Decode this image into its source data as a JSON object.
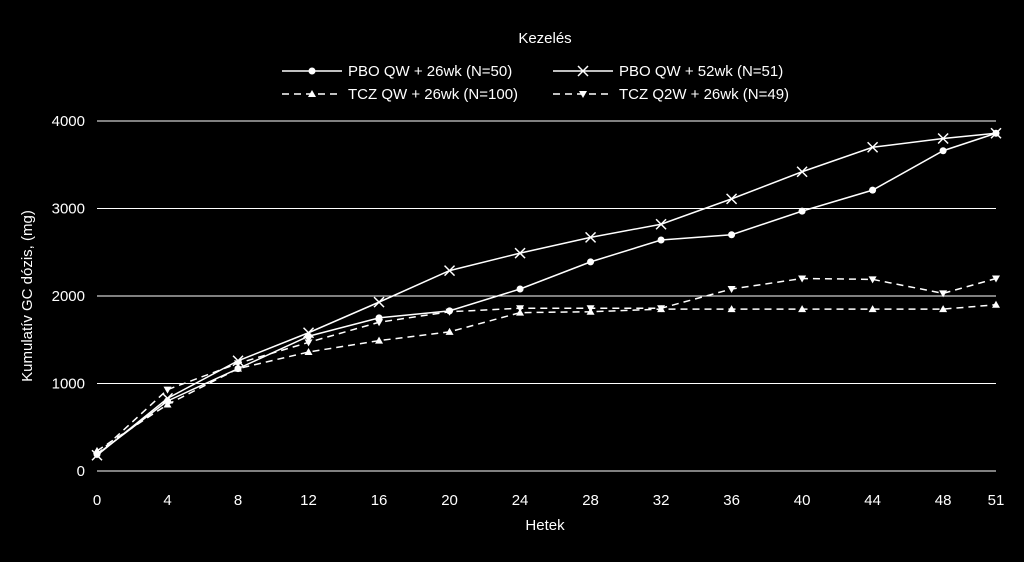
{
  "chart_data": {
    "type": "line",
    "legend_title": "Kezelés",
    "xlabel": "Hetek",
    "ylabel": "Kumulatív GC dózis, (mg)",
    "x": [
      0,
      4,
      8,
      12,
      16,
      20,
      24,
      28,
      32,
      36,
      40,
      44,
      48,
      51
    ],
    "x_ticks": [
      "0",
      "4",
      "8",
      "12",
      "16",
      "20",
      "24",
      "28",
      "32",
      "36",
      "40",
      "44",
      "48",
      "51"
    ],
    "y_ticks": [
      0,
      1000,
      2000,
      3000,
      4000
    ],
    "ylim": [
      0,
      4000
    ],
    "grid": "horizontal",
    "legend_position": "top",
    "colors": {
      "background": "#000000",
      "line": "#ffffff",
      "grid": "#ffffff"
    },
    "series": [
      {
        "name": "PBO QW + 26wk (N=50)",
        "marker": "circle",
        "dash": "solid",
        "values": [
          190,
          800,
          1170,
          1540,
          1750,
          1830,
          2080,
          2390,
          2640,
          2700,
          2970,
          3210,
          3660,
          3860
        ]
      },
      {
        "name": "PBO QW + 52wk (N=51)",
        "marker": "x",
        "dash": "solid",
        "values": [
          180,
          830,
          1260,
          1580,
          1930,
          2290,
          2490,
          2670,
          2820,
          3110,
          3420,
          3700,
          3800,
          3860
        ]
      },
      {
        "name": "TCZ QW + 26wk (N=100)",
        "marker": "triangle-up",
        "dash": "dashed",
        "values": [
          230,
          760,
          1170,
          1360,
          1490,
          1590,
          1810,
          1820,
          1850,
          1850,
          1850,
          1850,
          1850,
          1900
        ]
      },
      {
        "name": "TCZ Q2W + 26wk (N=49)",
        "marker": "triangle-down",
        "dash": "dashed",
        "values": [
          190,
          930,
          1230,
          1470,
          1700,
          1820,
          1860,
          1860,
          1860,
          2080,
          2200,
          2190,
          2030,
          2200
        ]
      }
    ]
  }
}
